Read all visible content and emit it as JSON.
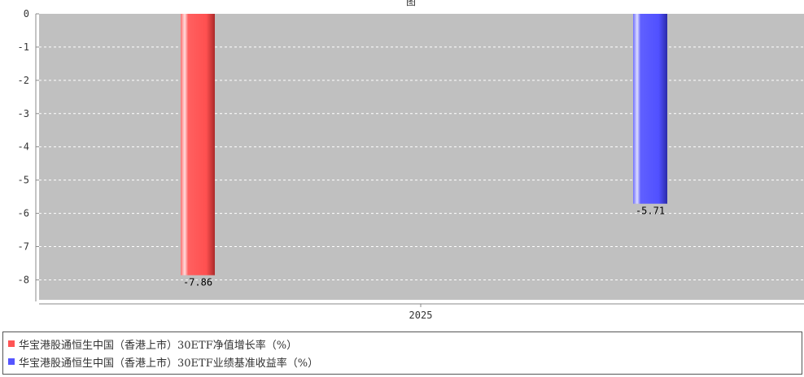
{
  "chart_data": {
    "type": "bar",
    "title": "图",
    "categories": [
      "2025"
    ],
    "series": [
      {
        "name": "华宝港股通恒生中国（香港上市）30ETF净值增长率（%）",
        "values": [
          -7.86
        ],
        "color": "#ff5555",
        "label": "-7.86"
      },
      {
        "name": "华宝港股通恒生中国（香港上市）30ETF业绩基准收益率（%）",
        "values": [
          -5.71
        ],
        "color": "#5555ff",
        "label": "-5.71"
      }
    ],
    "yticks": [
      "0",
      "-1",
      "-2",
      "-3",
      "-4",
      "-5",
      "-6",
      "-7",
      "-8"
    ],
    "ylim": [
      -8.6,
      0
    ],
    "xlabel": "",
    "ylabel": "",
    "grid": true,
    "legend_position": "bottom",
    "plot_background": "#c0c0c0"
  }
}
